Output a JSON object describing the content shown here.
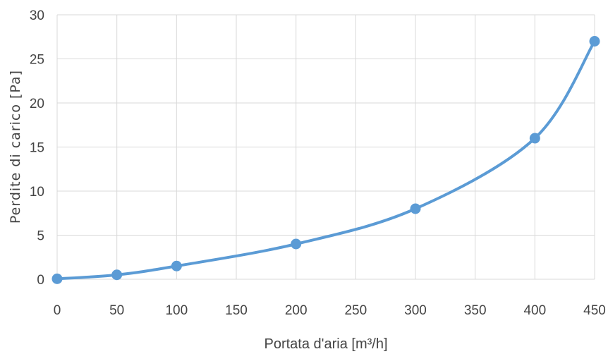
{
  "chart_data": {
    "type": "line",
    "title": "",
    "xlabel": "Portata d'aria [m³/h]",
    "ylabel": "Perdite di carico [Pa]",
    "xlim": [
      0,
      450
    ],
    "ylim": [
      0,
      30
    ],
    "xticks": [
      0,
      50,
      100,
      150,
      200,
      250,
      300,
      350,
      400,
      450
    ],
    "yticks": [
      0,
      5,
      10,
      15,
      20,
      25,
      30
    ],
    "grid": true,
    "smooth": true,
    "series": [
      {
        "x": [
          0,
          50,
          100,
          200,
          300,
          400,
          450
        ],
        "y": [
          0.05,
          0.5,
          1.5,
          4,
          8,
          16,
          27
        ],
        "color": "#5b9bd5"
      }
    ]
  }
}
